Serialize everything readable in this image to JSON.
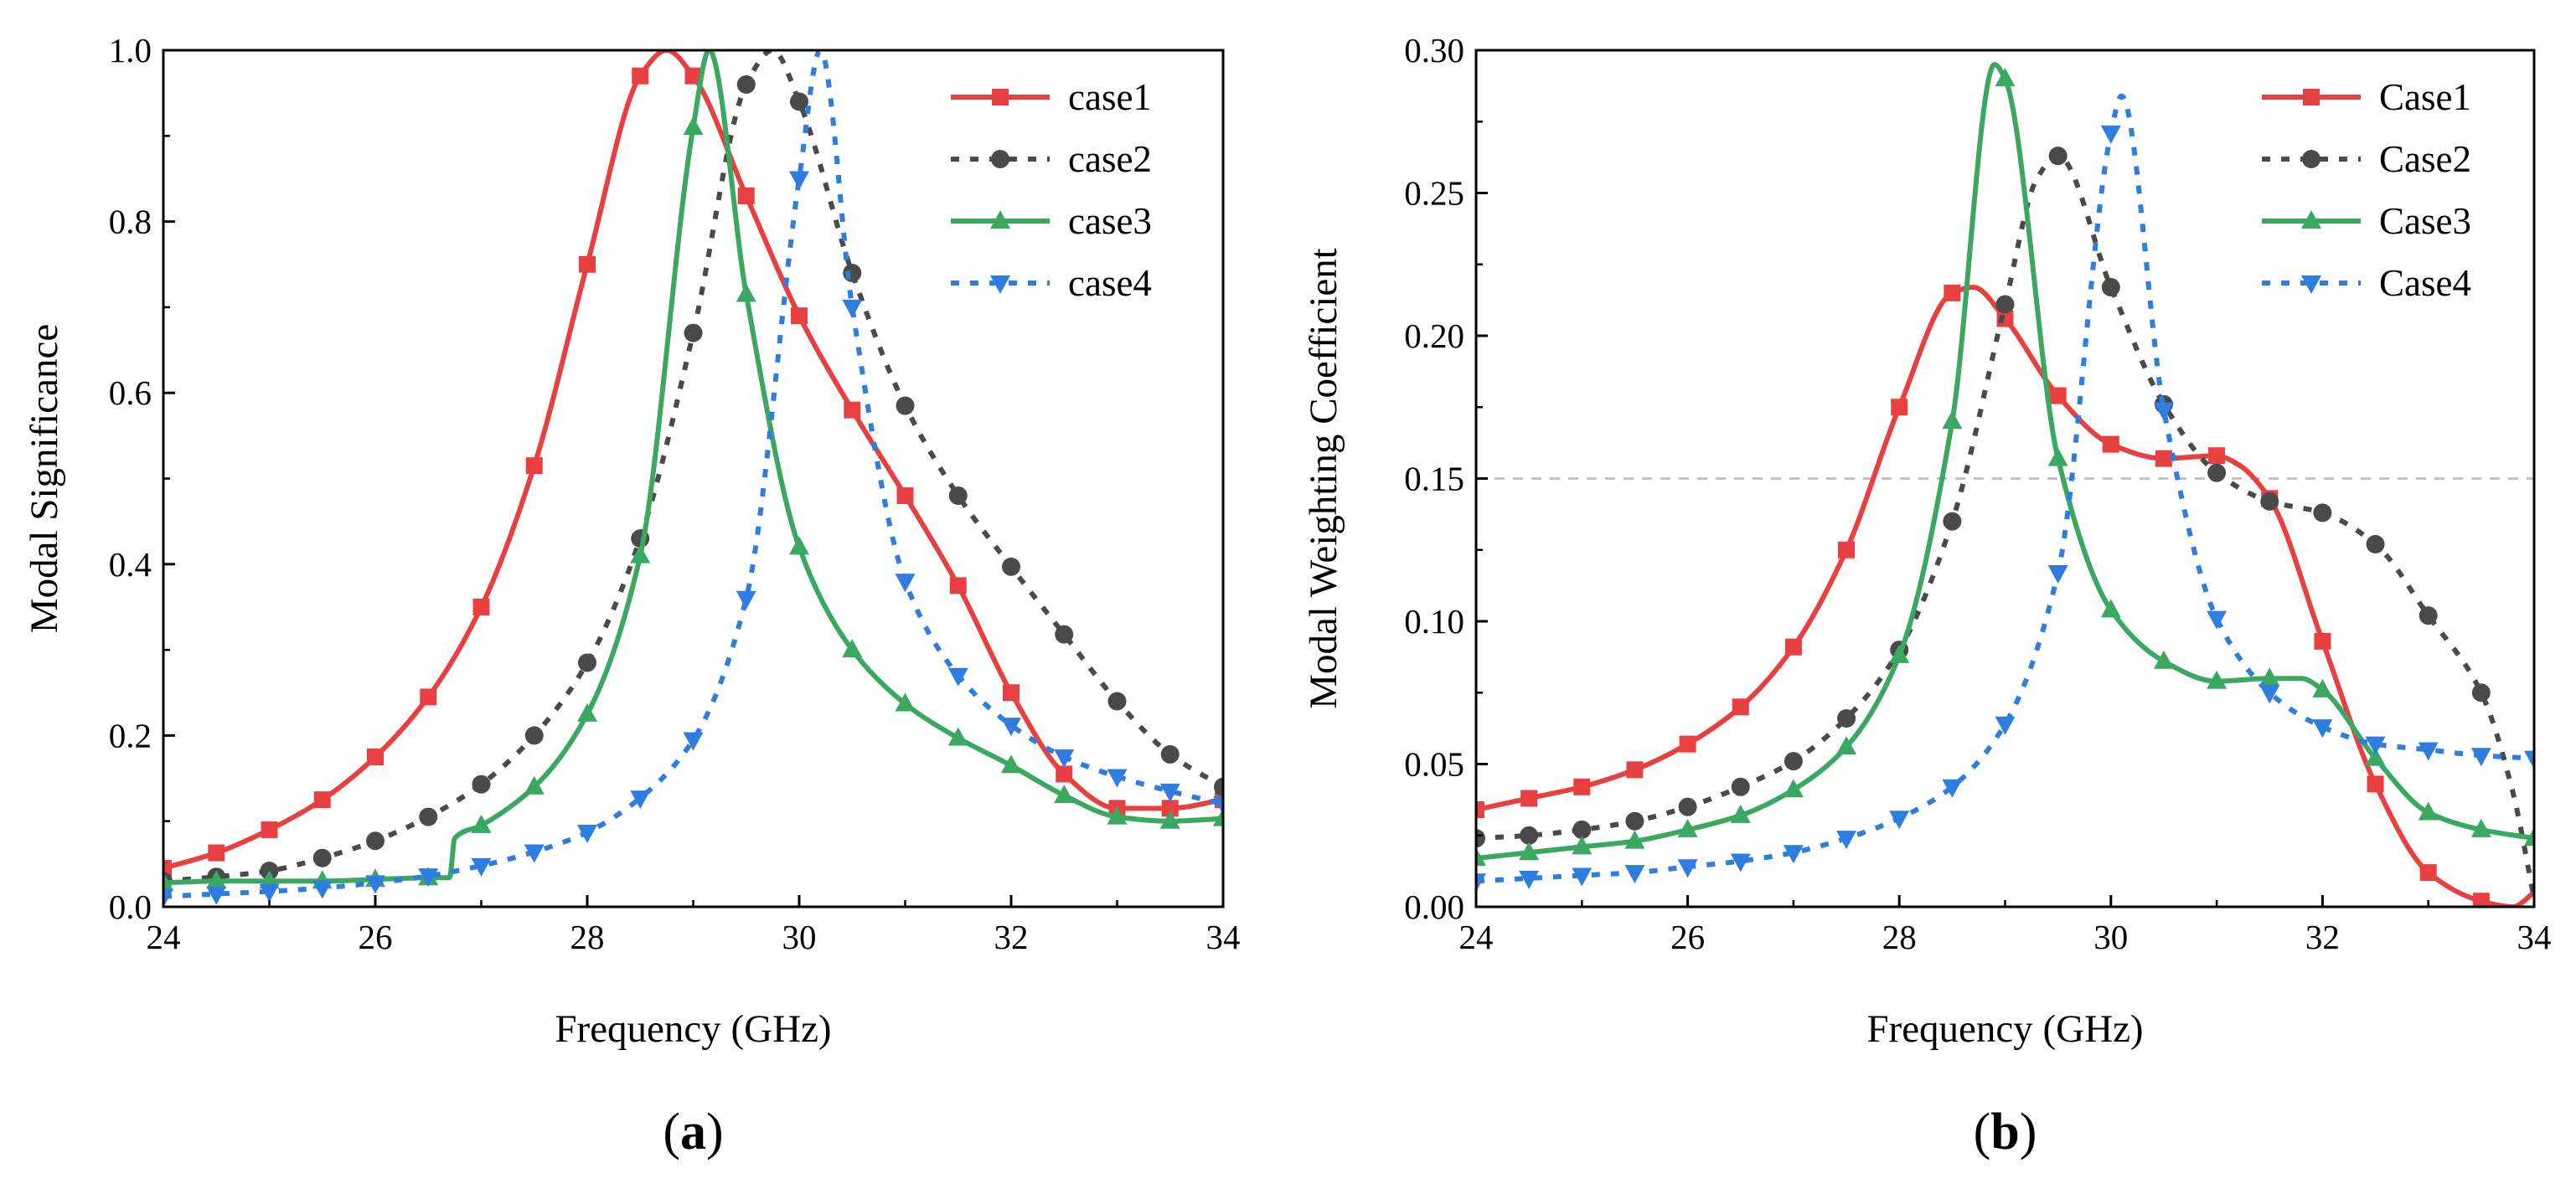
{
  "chart_data": [
    {
      "type": "line",
      "panel_label": "a",
      "title": "",
      "xlabel": "Frequency (GHz)",
      "ylabel": "Modal Significance",
      "xlim": [
        24,
        34
      ],
      "ylim": [
        0,
        1.0
      ],
      "xticks": [
        24,
        26,
        28,
        30,
        32,
        34
      ],
      "yticks": [
        0.0,
        0.2,
        0.4,
        0.6,
        0.8,
        1.0
      ],
      "ytick_labels": [
        "0.0",
        "0.2",
        "0.4",
        "0.6",
        "0.8",
        "1.0"
      ],
      "legend_position": "top-right",
      "series": [
        {
          "name": "case1",
          "color": "#e84040",
          "dash": "solid",
          "marker": "square",
          "x": [
            24,
            24.5,
            25,
            25.5,
            26,
            26.5,
            27,
            27.5,
            28,
            28.5,
            28.75,
            29,
            29.5,
            30,
            30.5,
            31,
            31.5,
            32,
            32.5,
            33,
            33.5,
            34
          ],
          "y": [
            0.045,
            0.063,
            0.09,
            0.125,
            0.175,
            0.245,
            0.35,
            0.515,
            0.75,
            0.97,
            1.0,
            0.97,
            0.83,
            0.69,
            0.58,
            0.48,
            0.375,
            0.25,
            0.155,
            0.115,
            0.115,
            0.125
          ],
          "markers_x": [
            24,
            24.5,
            25,
            25.5,
            26,
            26.5,
            27,
            27.5,
            28,
            28.5,
            29,
            29.5,
            30,
            30.5,
            31,
            31.5,
            32,
            32.5,
            33,
            33.5,
            34
          ]
        },
        {
          "name": "case2",
          "color": "#4a4a4a",
          "dash": "dot",
          "marker": "circle",
          "x": [
            24,
            24.5,
            25,
            25.5,
            26,
            26.5,
            27,
            27.5,
            28,
            28.5,
            29,
            29.5,
            29.75,
            30,
            30.5,
            31,
            31.5,
            32,
            32.5,
            33,
            33.5,
            34
          ],
          "y": [
            0.03,
            0.035,
            0.042,
            0.057,
            0.077,
            0.105,
            0.143,
            0.2,
            0.285,
            0.43,
            0.67,
            0.96,
            1.0,
            0.94,
            0.74,
            0.585,
            0.48,
            0.397,
            0.318,
            0.24,
            0.178,
            0.14
          ],
          "markers_x": [
            24,
            24.5,
            25,
            25.5,
            26,
            26.5,
            27,
            27.5,
            28,
            28.5,
            29,
            29.5,
            30,
            30.5,
            31,
            31.5,
            32,
            32.5,
            33,
            33.5,
            34
          ]
        },
        {
          "name": "case3",
          "color": "#3aa860",
          "dash": "solid",
          "marker": "triangle-up",
          "x": [
            24,
            24.5,
            25,
            25.5,
            26,
            26.5,
            26.7,
            26.75,
            27,
            27.5,
            28,
            28.5,
            29,
            29.15,
            29.5,
            30,
            30.5,
            31,
            31.5,
            32,
            32.5,
            33,
            33.5,
            34
          ],
          "y": [
            0.028,
            0.03,
            0.03,
            0.03,
            0.032,
            0.034,
            0.034,
            0.08,
            0.095,
            0.14,
            0.225,
            0.41,
            0.91,
            1.0,
            0.715,
            0.42,
            0.3,
            0.237,
            0.197,
            0.165,
            0.13,
            0.105,
            0.1,
            0.103
          ],
          "markers_x": [
            24,
            24.5,
            25,
            25.5,
            26,
            26.5,
            27,
            27.5,
            28,
            28.5,
            29,
            29.5,
            30,
            30.5,
            31,
            31.5,
            32,
            32.5,
            33,
            33.5,
            34
          ]
        },
        {
          "name": "case4",
          "color": "#2f7de0",
          "dash": "dot",
          "marker": "triangle-down",
          "x": [
            24,
            24.5,
            25,
            25.5,
            26,
            26.5,
            27,
            27.5,
            28,
            28.5,
            29,
            29.5,
            30,
            30.2,
            30.5,
            31,
            31.5,
            32,
            32.5,
            33,
            33.5,
            34
          ],
          "y": [
            0.012,
            0.015,
            0.018,
            0.022,
            0.028,
            0.036,
            0.048,
            0.064,
            0.087,
            0.127,
            0.195,
            0.36,
            0.85,
            1.0,
            0.7,
            0.38,
            0.27,
            0.212,
            0.175,
            0.152,
            0.135,
            0.12
          ],
          "markers_x": [
            24,
            24.5,
            25,
            25.5,
            26,
            26.5,
            27,
            27.5,
            28,
            28.5,
            29,
            29.5,
            30,
            30.5,
            31,
            31.5,
            32,
            32.5,
            33,
            33.5,
            34
          ]
        }
      ]
    },
    {
      "type": "line",
      "panel_label": "b",
      "title": "",
      "xlabel": "Frequency (GHz)",
      "ylabel": "Modal Weighting Coefficient",
      "xlim": [
        24,
        34
      ],
      "ylim": [
        0,
        0.3
      ],
      "xticks": [
        24,
        26,
        28,
        30,
        32,
        34
      ],
      "yticks": [
        0.0,
        0.05,
        0.1,
        0.15,
        0.2,
        0.25,
        0.3
      ],
      "ytick_labels": [
        "0.00",
        "0.05",
        "0.10",
        "0.15",
        "0.20",
        "0.25",
        "0.30"
      ],
      "reference_line": 0.15,
      "legend_position": "top-right",
      "series": [
        {
          "name": "Case1",
          "color": "#e84040",
          "dash": "solid",
          "marker": "square",
          "x": [
            24,
            24.5,
            25,
            25.5,
            26,
            26.5,
            27,
            27.5,
            28,
            28.5,
            28.7,
            29,
            29.5,
            30,
            30.5,
            31,
            31.2,
            31.5,
            32,
            32.5,
            33,
            33.5,
            33.8,
            34
          ],
          "y": [
            0.034,
            0.038,
            0.042,
            0.048,
            0.057,
            0.07,
            0.091,
            0.125,
            0.175,
            0.215,
            0.217,
            0.206,
            0.179,
            0.162,
            0.157,
            0.158,
            0.155,
            0.143,
            0.093,
            0.043,
            0.012,
            0.002,
            0.0,
            0.005
          ],
          "markers_x": [
            24,
            24.5,
            25,
            25.5,
            26,
            26.5,
            27,
            27.5,
            28,
            28.5,
            29,
            29.5,
            30,
            30.5,
            31,
            31.5,
            32,
            32.5,
            33,
            33.5
          ]
        },
        {
          "name": "Case2",
          "color": "#4a4a4a",
          "dash": "dot",
          "marker": "circle",
          "x": [
            24,
            24.5,
            25,
            25.5,
            26,
            26.5,
            27,
            27.5,
            28,
            28.5,
            29,
            29.3,
            29.5,
            30,
            30.5,
            31,
            31.5,
            32,
            32.5,
            33,
            33.5,
            33.8,
            34
          ],
          "y": [
            0.024,
            0.025,
            0.027,
            0.03,
            0.035,
            0.042,
            0.051,
            0.066,
            0.09,
            0.135,
            0.211,
            0.255,
            0.263,
            0.217,
            0.176,
            0.152,
            0.142,
            0.138,
            0.127,
            0.102,
            0.075,
            0.04,
            0.003
          ],
          "markers_x": [
            24,
            24.5,
            25,
            25.5,
            26,
            26.5,
            27,
            27.5,
            28,
            28.5,
            29,
            29.5,
            30,
            30.5,
            31,
            31.5,
            32,
            32.5,
            33,
            33.5
          ]
        },
        {
          "name": "Case3",
          "color": "#3aa860",
          "dash": "solid",
          "marker": "triangle-up",
          "x": [
            24,
            24.5,
            25,
            25.5,
            26,
            26.5,
            27,
            27.5,
            28,
            28.5,
            28.9,
            29,
            29.5,
            30,
            30.5,
            31,
            31.5,
            31.8,
            32,
            32.5,
            33,
            33.5,
            34
          ],
          "y": [
            0.017,
            0.019,
            0.021,
            0.023,
            0.027,
            0.032,
            0.041,
            0.056,
            0.088,
            0.17,
            0.295,
            0.29,
            0.157,
            0.104,
            0.086,
            0.079,
            0.08,
            0.08,
            0.076,
            0.052,
            0.033,
            0.027,
            0.024
          ],
          "markers_x": [
            24,
            24.5,
            25,
            25.5,
            26,
            26.5,
            27,
            27.5,
            28,
            28.5,
            29,
            29.5,
            30,
            30.5,
            31,
            31.5,
            32,
            32.5,
            33,
            33.5,
            34
          ]
        },
        {
          "name": "Case4",
          "color": "#2f7de0",
          "dash": "dot",
          "marker": "triangle-down",
          "x": [
            24,
            24.5,
            25,
            25.5,
            26,
            26.5,
            27,
            27.5,
            28,
            28.5,
            29,
            29.5,
            30,
            30.1,
            30.5,
            31,
            31.5,
            32,
            32.5,
            33,
            33.5,
            34
          ],
          "y": [
            0.009,
            0.01,
            0.011,
            0.012,
            0.014,
            0.016,
            0.019,
            0.024,
            0.031,
            0.042,
            0.064,
            0.117,
            0.271,
            0.284,
            0.174,
            0.101,
            0.075,
            0.063,
            0.057,
            0.055,
            0.053,
            0.052
          ],
          "markers_x": [
            24,
            24.5,
            25,
            25.5,
            26,
            26.5,
            27,
            27.5,
            28,
            28.5,
            29,
            29.5,
            30,
            30.5,
            31,
            31.5,
            32,
            32.5,
            33,
            33.5,
            34
          ]
        }
      ]
    }
  ]
}
